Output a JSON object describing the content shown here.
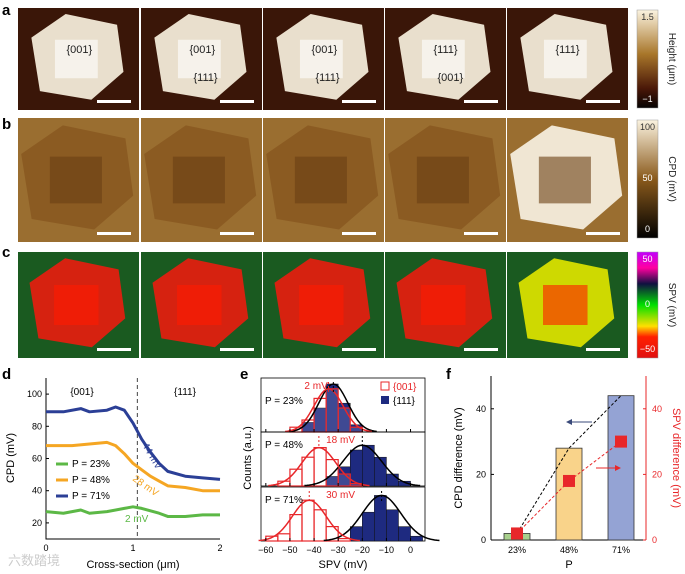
{
  "panel_labels": [
    "a",
    "b",
    "c",
    "d",
    "e",
    "f"
  ],
  "row_a": {
    "facet_labels": [
      [
        "{001}"
      ],
      [
        "{001}",
        "{111}"
      ],
      [
        "{001}",
        "{111}"
      ],
      [
        "{111}",
        "{001}"
      ],
      [
        "{111}"
      ]
    ],
    "colorbar": {
      "label": "Height (μm)",
      "max": "1.5",
      "min": "−1"
    }
  },
  "row_b": {
    "colorbar": {
      "label": "CPD (mV)",
      "ticks": [
        "100",
        "50",
        "0"
      ]
    }
  },
  "row_c": {
    "colorbar": {
      "label": "SPV (mV)",
      "ticks": [
        "50",
        "0",
        "−50"
      ]
    }
  },
  "colors": {
    "p23": "#5cb846",
    "p48": "#f5a623",
    "p71": "#2b3f96",
    "red": "#e8272a"
  },
  "watermark": "六数踏境",
  "chart_data": [
    {
      "id": "d",
      "type": "line",
      "xlabel": "Cross-section (μm)",
      "ylabel": "CPD (mV)",
      "xlim": [
        0,
        2
      ],
      "ylim": [
        10,
        110
      ],
      "xticks": [
        "0",
        "1",
        "2"
      ],
      "yticks": [
        "20",
        "40",
        "60",
        "80",
        "100"
      ],
      "region_labels": [
        "{001}",
        "{111}"
      ],
      "boundary_x": 1.05,
      "series": [
        {
          "name": "P = 23%",
          "color": "#5cb846",
          "annotation": "2 mV",
          "x": [
            0,
            0.2,
            0.4,
            0.5,
            0.7,
            0.9,
            1.0,
            1.1,
            1.3,
            1.4,
            1.6,
            1.8,
            2.0
          ],
          "y": [
            27,
            26,
            28,
            26,
            27,
            29,
            30,
            29,
            26,
            24,
            24,
            25,
            25
          ]
        },
        {
          "name": "P = 48%",
          "color": "#f5a623",
          "annotation": "28 mV",
          "x": [
            0,
            0.3,
            0.5,
            0.7,
            0.8,
            0.9,
            1.0,
            1.1,
            1.2,
            1.3,
            1.4,
            1.6,
            1.8,
            2.0
          ],
          "y": [
            68,
            68,
            69,
            70,
            68,
            63,
            57,
            53,
            49,
            46,
            43,
            42,
            40,
            40
          ]
        },
        {
          "name": "P = 71%",
          "color": "#2b3f96",
          "annotation": "44 mV",
          "x": [
            0,
            0.2,
            0.4,
            0.5,
            0.7,
            0.8,
            0.9,
            1.0,
            1.1,
            1.2,
            1.3,
            1.4,
            1.6,
            1.8,
            2.0
          ],
          "y": [
            89,
            89,
            91,
            89,
            90,
            92,
            90,
            82,
            72,
            64,
            57,
            52,
            49,
            48,
            47
          ]
        }
      ]
    },
    {
      "id": "e",
      "type": "bar",
      "xlabel": "SPV (mV)",
      "ylabel": "Counts (a.u.)",
      "xlim": [
        -62,
        6
      ],
      "xticks": [
        "−60",
        "−50",
        "−40",
        "−30",
        "−20",
        "−10",
        "0"
      ],
      "xtick_values": [
        -60,
        -50,
        -40,
        -30,
        -20,
        -10,
        0
      ],
      "legend": [
        "{001}",
        "{111}"
      ],
      "bin_width": 5,
      "panels": [
        {
          "label": "P = 23%",
          "annotation": "2 mV",
          "mean001": -34,
          "mean111": -32,
          "bins001": [
            -47.5,
            -42.5,
            -37.5,
            -32.5,
            -27.5,
            -22.5
          ],
          "counts001": [
            0.1,
            0.25,
            0.7,
            0.9,
            0.5,
            0.1
          ],
          "bins111": [
            -42.5,
            -37.5,
            -32.5,
            -27.5,
            -22.5
          ],
          "counts111": [
            0.2,
            0.5,
            1.0,
            0.6,
            0.15
          ]
        },
        {
          "label": "P = 48%",
          "annotation": "18 mV",
          "mean001": -38,
          "mean111": -20,
          "bins001": [
            -52.5,
            -47.5,
            -42.5,
            -37.5,
            -32.5,
            -27.5,
            -22.5
          ],
          "counts001": [
            0.1,
            0.35,
            0.6,
            0.8,
            0.55,
            0.25,
            0.05
          ],
          "bins111": [
            -32.5,
            -27.5,
            -22.5,
            -17.5,
            -12.5,
            -7.5,
            -2.5
          ],
          "counts111": [
            0.2,
            0.4,
            0.75,
            0.85,
            0.6,
            0.25,
            0.1
          ]
        },
        {
          "label": "P = 71%",
          "annotation": "30 mV",
          "mean001": -42,
          "mean111": -12,
          "bins001": [
            -57.5,
            -52.5,
            -47.5,
            -42.5,
            -37.5,
            -32.5,
            -27.5
          ],
          "counts001": [
            0.1,
            0.15,
            0.55,
            0.85,
            0.65,
            0.3,
            0.05
          ],
          "bins111": [
            -22.5,
            -17.5,
            -12.5,
            -7.5,
            -2.5,
            2.5
          ],
          "counts111": [
            0.3,
            0.6,
            0.95,
            0.65,
            0.3,
            0.1
          ]
        }
      ]
    },
    {
      "id": "f",
      "type": "bar",
      "xlabel": "P",
      "ylabel": "CPD difference (mV)",
      "ylabel_right": "SPV difference (mV)",
      "categories": [
        "23%",
        "48%",
        "71%"
      ],
      "ylim": [
        0,
        50
      ],
      "yticks": [
        "0",
        "20",
        "40"
      ],
      "bar_values": [
        2,
        28,
        44
      ],
      "bar_colors": [
        "#a8d08d",
        "#f9d38a",
        "#94a3d4"
      ],
      "spv_values": [
        2,
        18,
        30
      ]
    }
  ]
}
